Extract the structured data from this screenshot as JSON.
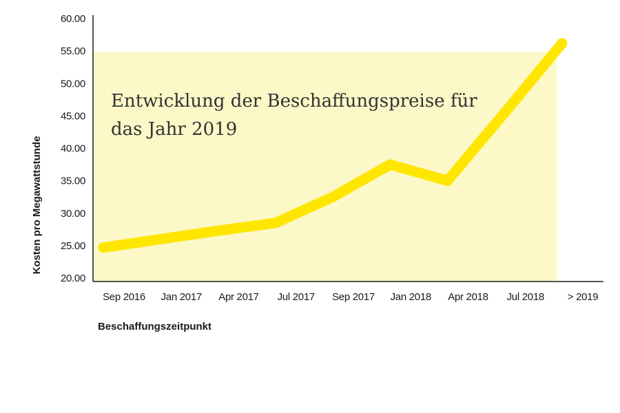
{
  "chart_data": {
    "type": "line",
    "title_lines": [
      "Entwicklung der Beschaffungspreise für",
      "das Jahr 2019"
    ],
    "xlabel": "Beschaffungszeitpunkt",
    "ylabel": "Kosten pro Megawattstunde",
    "categories": [
      "Sep 2016",
      "Jan 2017",
      "Apr 2017",
      "Jul 2017",
      "Sep 2017",
      "Jan 2018",
      "Apr 2018",
      "Jul 2018",
      "> 2019"
    ],
    "series": [
      {
        "values": [
          24.7,
          26.0,
          27.3,
          28.5,
          32.5,
          37.5,
          35.0,
          45.5,
          56.2
        ]
      }
    ],
    "ylim": [
      20,
      60
    ],
    "yticks": [
      "20.00",
      "25.00",
      "30.00",
      "35.00",
      "40.00",
      "45.00",
      "50.00",
      "55.00",
      "60.00"
    ],
    "grid": false,
    "colors": {
      "line": "#ffe600",
      "highlight_band": "#fcf8c8",
      "axis": "#1a1a1a"
    }
  }
}
